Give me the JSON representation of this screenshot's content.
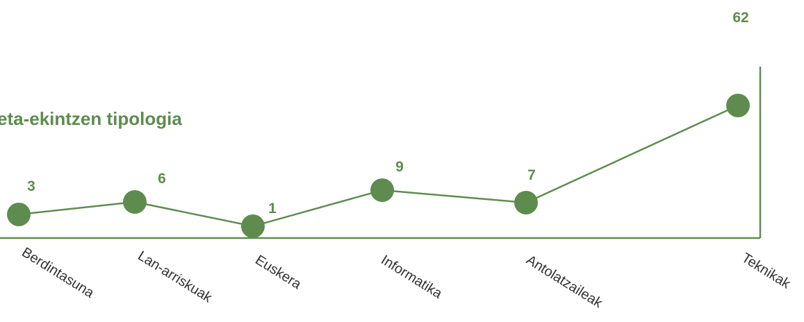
{
  "chart_data": {
    "type": "line",
    "title": "eta-ekintzen tipologia",
    "categories": [
      "Berdintasuna",
      "Lan-arriskuak",
      "Euskera",
      "Informatika",
      "Antolatzaileak",
      "Teknikak"
    ],
    "values": [
      3,
      6,
      1,
      9,
      7,
      62
    ],
    "xlabel": "",
    "ylabel": "",
    "grid": false,
    "legend": "none",
    "colors": {
      "series": "#5e8c4e",
      "axis": "#5e8c4e",
      "title": "#5e8c4e",
      "label": "#5e8c4e",
      "tick_text": "#333333"
    }
  }
}
